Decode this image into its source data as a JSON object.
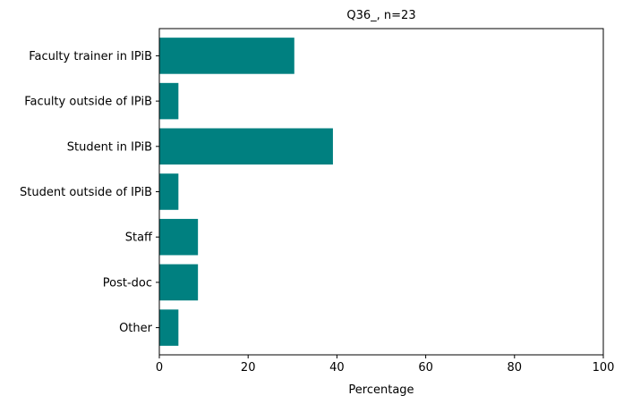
{
  "chart_data": {
    "type": "bar",
    "orientation": "horizontal",
    "title": "Q36_, n=23",
    "xlabel": "Percentage",
    "ylabel": "",
    "xlim": [
      0,
      100
    ],
    "xticks": [
      "0",
      "20",
      "40",
      "60",
      "80",
      "100"
    ],
    "grid": false,
    "bar_color": "#008080",
    "categories": [
      "Faculty trainer in IPiB",
      "Faculty outside of IPiB",
      "Student in IPiB",
      "Student outside of IPiB",
      "Staff",
      "Post-doc",
      "Other"
    ],
    "values": [
      30.4,
      4.3,
      39.1,
      4.3,
      8.7,
      8.7,
      4.3
    ]
  }
}
